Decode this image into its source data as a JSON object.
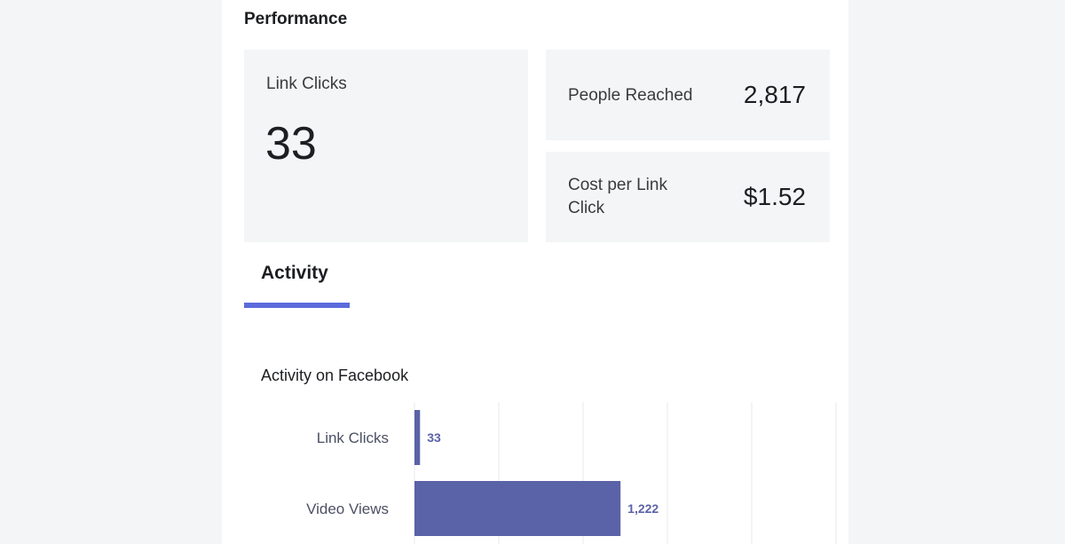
{
  "performance": {
    "title": "Performance",
    "link_clicks": {
      "label": "Link Clicks",
      "value": "33"
    },
    "people_reached": {
      "label": "People Reached",
      "value": "2,817"
    },
    "cost_per_link_click": {
      "label": "Cost per Link Click",
      "value": "$1.52"
    }
  },
  "activity_tab": {
    "label": "Activity"
  },
  "colors": {
    "accent": "#5b6bdc",
    "bar": "#5a62a8",
    "card_bg": "#f4f5f7",
    "grid": "#e8e9ec",
    "category_text": "#4b5063"
  },
  "chart_data": {
    "type": "bar",
    "orientation": "horizontal",
    "title": "Activity on Facebook",
    "categories": [
      "Link Clicks",
      "Video Views"
    ],
    "values": [
      33,
      1222
    ],
    "value_labels": [
      "33",
      "1,222"
    ],
    "xlim": [
      0,
      2500
    ],
    "grid": true
  }
}
